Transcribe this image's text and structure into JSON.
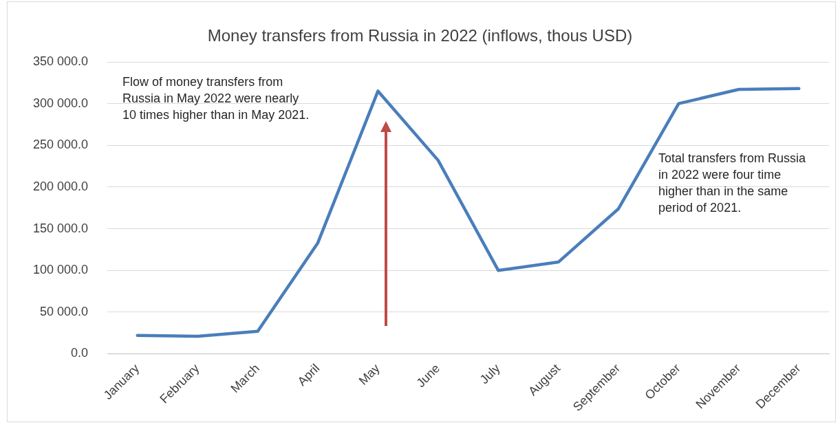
{
  "chart_data": {
    "type": "line",
    "title": "Money transfers from Russia in 2022 (inflows, thous USD)",
    "categories": [
      "January",
      "February",
      "March",
      "April",
      "May",
      "June",
      "July",
      "August",
      "September",
      "October",
      "November",
      "December"
    ],
    "series": [
      {
        "color": "#4a7ebb",
        "values": [
          22000,
          21000,
          27000,
          133000,
          315000,
          232000,
          100000,
          110000,
          174000,
          300000,
          317000,
          318000
        ]
      }
    ],
    "ylim": [
      0,
      350000
    ],
    "yticks": [
      {
        "value": 0,
        "label": "0.0"
      },
      {
        "value": 50000,
        "label": "50 000.0"
      },
      {
        "value": 100000,
        "label": "100 000.0"
      },
      {
        "value": 150000,
        "label": "150 000.0"
      },
      {
        "value": 200000,
        "label": "200 000.0"
      },
      {
        "value": 250000,
        "label": "250 000.0"
      },
      {
        "value": 300000,
        "label": "300 000.0"
      },
      {
        "value": 350000,
        "label": "350 000.0"
      }
    ],
    "grid": "y",
    "legend": false,
    "marker": "none",
    "line_style": "solid",
    "annotations": [
      "Flow of money transfers from Russia in May 2022 were nearly 10 times higher than in May 2021.",
      "Total transfers from Russia in 2022  were four time higher than in the same period of 2021."
    ]
  }
}
